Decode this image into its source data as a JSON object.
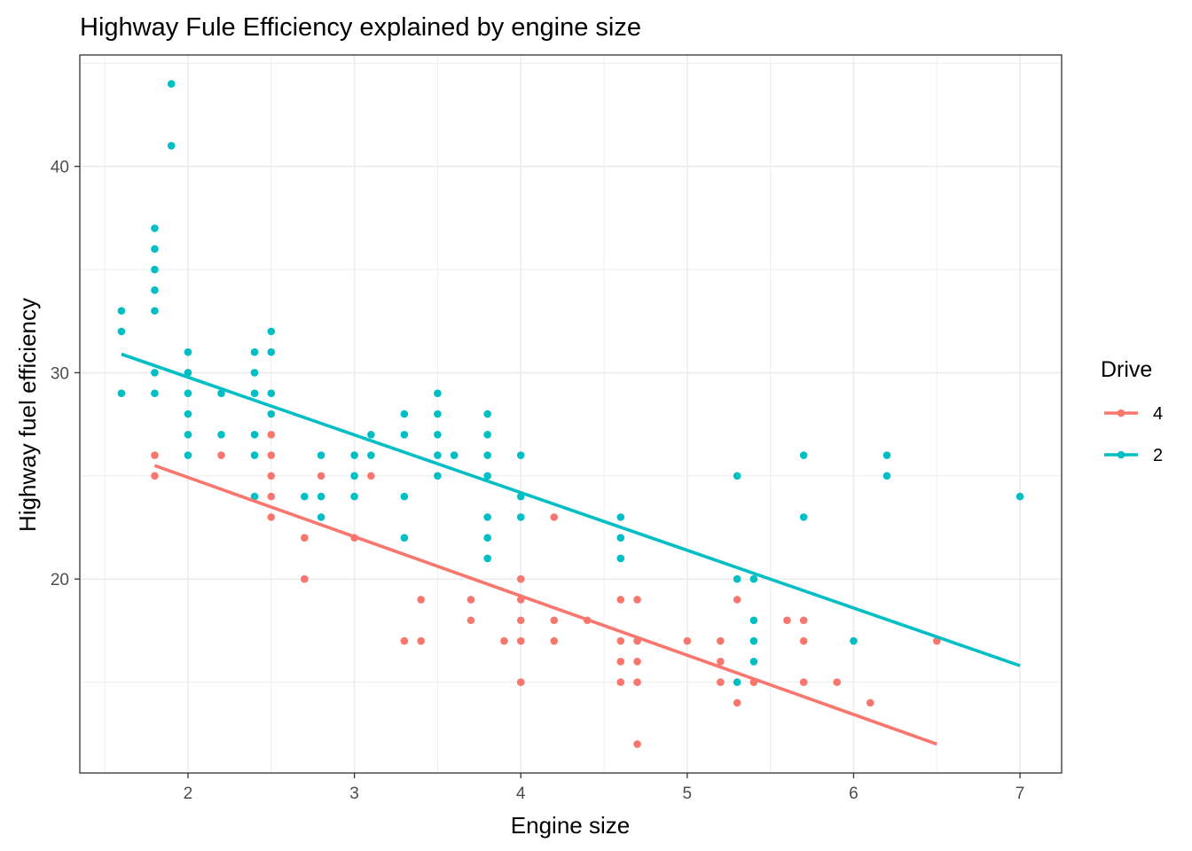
{
  "chart_data": {
    "type": "scatter",
    "title": "Highway Fule Efficiency explained by engine size",
    "xlabel": "Engine size",
    "ylabel": "Highway fuel efficiency",
    "xlim": [
      1.35,
      7.25
    ],
    "ylim": [
      10.6,
      45.4
    ],
    "x_ticks": [
      2,
      3,
      4,
      5,
      6,
      7
    ],
    "y_ticks": [
      20,
      30,
      40
    ],
    "grid": true,
    "legend": {
      "title": "Drive",
      "position": "right"
    },
    "series": [
      {
        "name": "4",
        "color": "#F8766D",
        "points": [
          [
            1.8,
            26
          ],
          [
            1.8,
            25
          ],
          [
            2.2,
            26
          ],
          [
            2.5,
            27
          ],
          [
            2.5,
            26
          ],
          [
            2.5,
            25
          ],
          [
            2.5,
            24
          ],
          [
            2.5,
            23
          ],
          [
            2.7,
            22
          ],
          [
            2.7,
            20
          ],
          [
            2.8,
            25
          ],
          [
            3.0,
            22
          ],
          [
            3.1,
            25
          ],
          [
            3.3,
            17
          ],
          [
            3.4,
            19
          ],
          [
            3.4,
            17
          ],
          [
            3.7,
            19
          ],
          [
            3.7,
            18
          ],
          [
            3.9,
            17
          ],
          [
            4.0,
            20
          ],
          [
            4.0,
            19
          ],
          [
            4.0,
            18
          ],
          [
            4.0,
            17
          ],
          [
            4.0,
            15
          ],
          [
            4.2,
            23
          ],
          [
            4.2,
            18
          ],
          [
            4.2,
            17
          ],
          [
            4.4,
            18
          ],
          [
            4.6,
            19
          ],
          [
            4.6,
            17
          ],
          [
            4.6,
            16
          ],
          [
            4.6,
            15
          ],
          [
            4.7,
            19
          ],
          [
            4.7,
            17
          ],
          [
            4.7,
            16
          ],
          [
            4.7,
            15
          ],
          [
            4.7,
            12
          ],
          [
            5.0,
            17
          ],
          [
            5.2,
            17
          ],
          [
            5.2,
            16
          ],
          [
            5.2,
            15
          ],
          [
            5.3,
            19
          ],
          [
            5.3,
            14
          ],
          [
            5.4,
            15
          ],
          [
            5.6,
            18
          ],
          [
            5.7,
            18
          ],
          [
            5.7,
            17
          ],
          [
            5.7,
            15
          ],
          [
            5.9,
            15
          ],
          [
            6.1,
            14
          ],
          [
            6.5,
            17
          ]
        ],
        "fit": {
          "x": [
            1.8,
            6.5
          ],
          "y": [
            25.5,
            12.0
          ]
        }
      },
      {
        "name": "2",
        "color": "#00BFC4",
        "points": [
          [
            1.6,
            33
          ],
          [
            1.6,
            32
          ],
          [
            1.6,
            29
          ],
          [
            1.8,
            37
          ],
          [
            1.8,
            36
          ],
          [
            1.8,
            35
          ],
          [
            1.8,
            34
          ],
          [
            1.8,
            33
          ],
          [
            1.8,
            30
          ],
          [
            1.8,
            29
          ],
          [
            1.9,
            44
          ],
          [
            1.9,
            41
          ],
          [
            2.0,
            31
          ],
          [
            2.0,
            30
          ],
          [
            2.0,
            29
          ],
          [
            2.0,
            28
          ],
          [
            2.0,
            27
          ],
          [
            2.0,
            26
          ],
          [
            2.2,
            29
          ],
          [
            2.2,
            27
          ],
          [
            2.4,
            31
          ],
          [
            2.4,
            30
          ],
          [
            2.4,
            29
          ],
          [
            2.4,
            27
          ],
          [
            2.4,
            26
          ],
          [
            2.4,
            24
          ],
          [
            2.5,
            32
          ],
          [
            2.5,
            31
          ],
          [
            2.5,
            29
          ],
          [
            2.5,
            28
          ],
          [
            2.7,
            24
          ],
          [
            2.8,
            26
          ],
          [
            2.8,
            24
          ],
          [
            2.8,
            23
          ],
          [
            3.0,
            26
          ],
          [
            3.0,
            25
          ],
          [
            3.0,
            24
          ],
          [
            3.1,
            27
          ],
          [
            3.1,
            26
          ],
          [
            3.3,
            28
          ],
          [
            3.3,
            27
          ],
          [
            3.3,
            24
          ],
          [
            3.3,
            22
          ],
          [
            3.5,
            29
          ],
          [
            3.5,
            28
          ],
          [
            3.5,
            27
          ],
          [
            3.5,
            26
          ],
          [
            3.5,
            25
          ],
          [
            3.6,
            26
          ],
          [
            3.8,
            28
          ],
          [
            3.8,
            27
          ],
          [
            3.8,
            26
          ],
          [
            3.8,
            25
          ],
          [
            3.8,
            23
          ],
          [
            3.8,
            22
          ],
          [
            3.8,
            21
          ],
          [
            4.0,
            26
          ],
          [
            4.0,
            24
          ],
          [
            4.0,
            23
          ],
          [
            4.6,
            23
          ],
          [
            4.6,
            22
          ],
          [
            4.6,
            21
          ],
          [
            5.3,
            25
          ],
          [
            5.3,
            20
          ],
          [
            5.3,
            15
          ],
          [
            5.4,
            20
          ],
          [
            5.4,
            18
          ],
          [
            5.4,
            17
          ],
          [
            5.4,
            16
          ],
          [
            5.7,
            26
          ],
          [
            5.7,
            23
          ],
          [
            6.0,
            17
          ],
          [
            6.2,
            26
          ],
          [
            6.2,
            25
          ],
          [
            7.0,
            24
          ]
        ],
        "fit": {
          "x": [
            1.6,
            7.0
          ],
          "y": [
            30.9,
            15.8
          ]
        }
      }
    ]
  }
}
